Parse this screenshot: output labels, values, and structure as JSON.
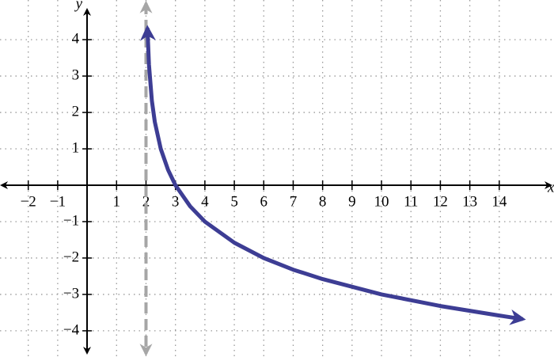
{
  "chart_data": {
    "type": "line",
    "x_label": "x",
    "y_label": "y",
    "xlim": [
      -2.96,
      15.86
    ],
    "ylim": [
      -4.72,
      5.09
    ],
    "xticks": [
      {
        "value": -2,
        "label": "−2"
      },
      {
        "value": -1,
        "label": "−1"
      },
      1,
      2,
      3,
      4,
      5,
      6,
      7,
      8,
      9,
      10,
      11,
      12,
      13,
      14
    ],
    "yticks": [
      {
        "value": -4,
        "label": "−4"
      },
      {
        "value": -3,
        "label": "−3"
      },
      {
        "value": -2,
        "label": "−2"
      },
      {
        "value": -1,
        "label": "−1"
      },
      1,
      2,
      3,
      4
    ],
    "grid": true,
    "asymptote_x": 2,
    "series": [
      {
        "color": "#3d3d94",
        "x": [
          2.05,
          2.1,
          2.2,
          2.3,
          2.5,
          2.75,
          3,
          3.5,
          4,
          5,
          6,
          7,
          8,
          10,
          12,
          14,
          14.8
        ],
        "values": [
          4.32,
          3.32,
          2.32,
          1.74,
          1,
          0.42,
          0,
          -0.58,
          -1,
          -1.58,
          -2,
          -2.32,
          -2.58,
          -3,
          -3.32,
          -3.58,
          -3.68
        ]
      }
    ]
  }
}
